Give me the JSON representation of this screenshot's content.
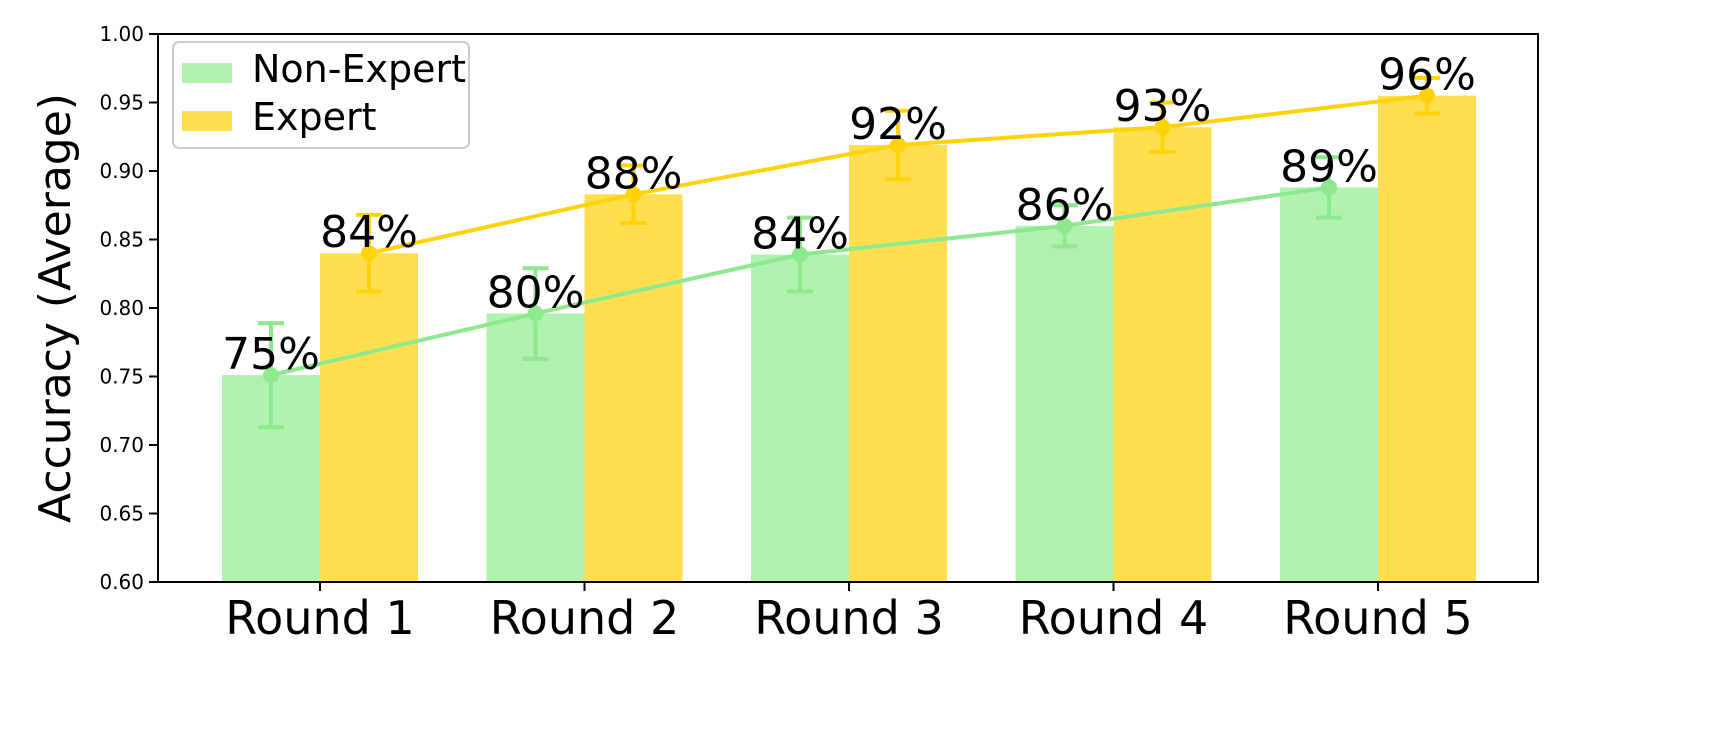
{
  "chart_data": {
    "type": "bar",
    "title": "",
    "xlabel": "",
    "ylabel": "Accuracy (Average)",
    "ylim": [
      0.6,
      1.0
    ],
    "yticks": [
      0.6,
      0.65,
      0.7,
      0.75,
      0.8,
      0.85,
      0.9,
      0.95,
      1.0
    ],
    "ytick_labels": [
      "0.60",
      "0.65",
      "0.70",
      "0.75",
      "0.80",
      "0.85",
      "0.90",
      "0.95",
      "1.00"
    ],
    "categories": [
      "Round 1",
      "Round 2",
      "Round 3",
      "Round 4",
      "Round 5"
    ],
    "grid": false,
    "legend_position": "top-left",
    "series": [
      {
        "name": "Non-Expert",
        "color": "#b0f2b0",
        "line_color": "#8ee88e",
        "values": [
          0.751,
          0.796,
          0.839,
          0.86,
          0.888
        ],
        "errors": [
          0.038,
          0.033,
          0.027,
          0.015,
          0.022
        ],
        "labels": [
          "75%",
          "80%",
          "84%",
          "86%",
          "89%"
        ]
      },
      {
        "name": "Expert",
        "color": "#ffdf50",
        "line_color": "#ffd20a",
        "values": [
          0.84,
          0.883,
          0.919,
          0.932,
          0.955
        ],
        "errors": [
          0.028,
          0.021,
          0.025,
          0.018,
          0.013
        ],
        "labels": [
          "84%",
          "88%",
          "92%",
          "93%",
          "96%"
        ]
      }
    ]
  }
}
